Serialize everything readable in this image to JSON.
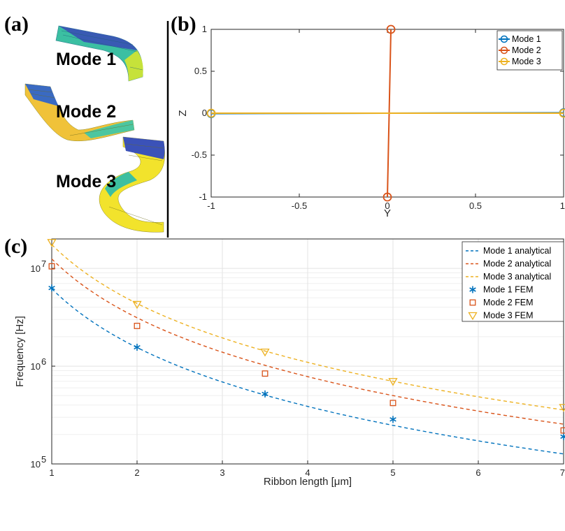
{
  "colors": {
    "mode1": "#0072bd",
    "mode2": "#d95319",
    "mode3": "#edb120",
    "grid": "#e3e3e3",
    "axis": "#262626"
  },
  "panel_a": {
    "tag": "(a)",
    "labels": [
      "Mode 1",
      "Mode 2",
      "Mode 3"
    ]
  },
  "chart_data": [
    {
      "panel": "(b)",
      "type": "line",
      "xlabel": "Y",
      "ylabel": "Z",
      "xlim": [
        -1,
        1
      ],
      "ylim": [
        -1,
        1
      ],
      "xticks": [
        -1,
        -0.5,
        0,
        0.5,
        1
      ],
      "xtick_labels": [
        "-1",
        "-0.5",
        "0",
        "0.5",
        "1"
      ],
      "yticks": [
        -1,
        -0.5,
        0,
        0.5,
        1
      ],
      "ytick_labels": [
        "-1",
        "-0.5",
        "0",
        "0.5",
        "1"
      ],
      "grid": false,
      "legend_position": "top-right",
      "series": [
        {
          "name": "Mode 1",
          "x": [
            -1,
            1
          ],
          "y": [
            -0.005,
            0.005
          ]
        },
        {
          "name": "Mode 2",
          "x": [
            0,
            0.02
          ],
          "y": [
            -1,
            1
          ]
        },
        {
          "name": "Mode 3",
          "x": [
            -1,
            1
          ],
          "y": [
            0,
            0
          ]
        }
      ]
    },
    {
      "panel": "(c)",
      "type": "line",
      "xlabel": "Ribbon length [μm]",
      "ylabel": "Frequency [Hz]",
      "yscale": "log",
      "xlim": [
        1,
        7
      ],
      "ylim": [
        100000,
        20000000
      ],
      "xticks": [
        1,
        2,
        3,
        4,
        5,
        6,
        7
      ],
      "xtick_labels": [
        "1",
        "2",
        "3",
        "4",
        "5",
        "6",
        "7"
      ],
      "yticks": [
        100000,
        1000000,
        10000000
      ],
      "ytick_labels": [
        "10",
        "10",
        "10"
      ],
      "ytick_exponents": [
        "5",
        "6",
        "7"
      ],
      "grid": true,
      "legend_position": "top-right",
      "series": [
        {
          "name": "Mode 1 analytical",
          "style": "dashed",
          "coeff": 6200000,
          "exponent": -2,
          "x_range": [
            1,
            7
          ]
        },
        {
          "name": "Mode 2 analytical",
          "style": "dashed",
          "coeff": 12500000,
          "exponent": -2,
          "x_range": [
            1,
            7
          ]
        },
        {
          "name": "Mode 3 analytical",
          "style": "dashed",
          "coeff": 17500000,
          "exponent": -2,
          "x_range": [
            1,
            7
          ]
        },
        {
          "name": "Mode 1 FEM",
          "marker": "asterisk",
          "x": [
            1,
            2,
            3.5,
            5,
            7
          ],
          "y": [
            6300000,
            1560000,
            520000,
            285000,
            190000
          ]
        },
        {
          "name": "Mode 2 FEM",
          "marker": "square",
          "x": [
            1,
            2,
            3.5,
            5,
            7
          ],
          "y": [
            10500000,
            2580000,
            840000,
            420000,
            220000
          ]
        },
        {
          "name": "Mode 3 FEM",
          "marker": "triangle-down",
          "x": [
            1,
            2,
            3.5,
            5,
            7
          ],
          "y": [
            18500000,
            4300000,
            1400000,
            700000,
            380000
          ]
        }
      ]
    }
  ]
}
